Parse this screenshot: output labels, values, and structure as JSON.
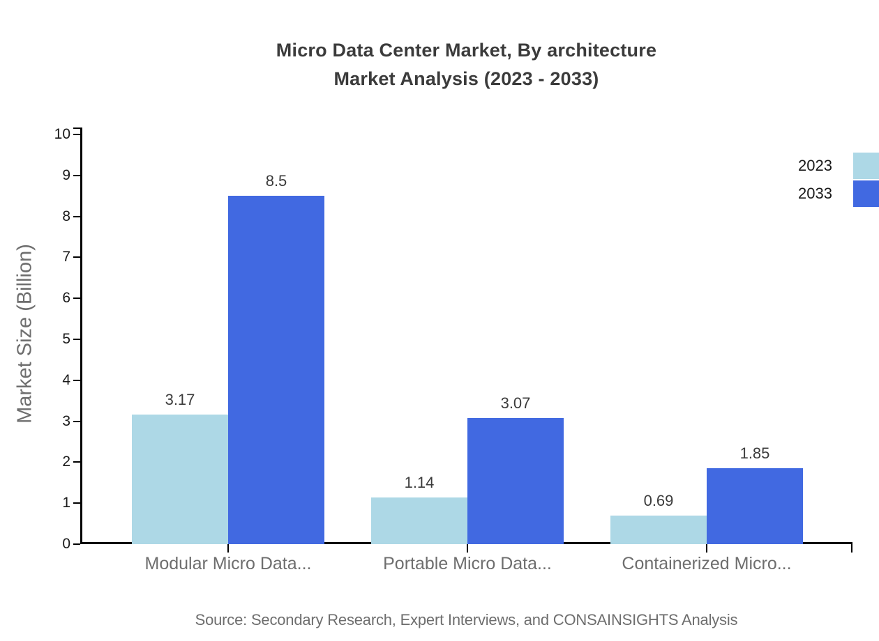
{
  "title": {
    "line1": "Micro Data Center Market, By architecture",
    "line2": "Market Analysis (2023 - 2033)"
  },
  "source": "Source: Secondary Research, Expert Interviews, and CONSAINSIGHTS Analysis",
  "colors": {
    "series_2023": "#ADD8E6",
    "series_2033": "#4169E1",
    "axis": "#000000",
    "title_text": "#3b3b3b",
    "muted_text": "#6e6e6e"
  },
  "chart_data": {
    "type": "bar",
    "title": "Micro Data Center Market, By architecture Market Analysis (2023 - 2033)",
    "categories": [
      "Modular Micro Data...",
      "Portable Micro Data...",
      "Containerized Micro..."
    ],
    "series": [
      {
        "name": "2023",
        "color": "#ADD8E6",
        "values": [
          3.17,
          1.14,
          0.69
        ]
      },
      {
        "name": "2033",
        "color": "#4169E1",
        "values": [
          8.5,
          3.07,
          1.85
        ]
      }
    ],
    "xlabel": "",
    "ylabel": "Market Size (Billion)",
    "ylim": [
      0,
      10
    ],
    "ytick_step": 1,
    "grid": false,
    "legend_position": "top-right",
    "value_labels_shown": true
  }
}
